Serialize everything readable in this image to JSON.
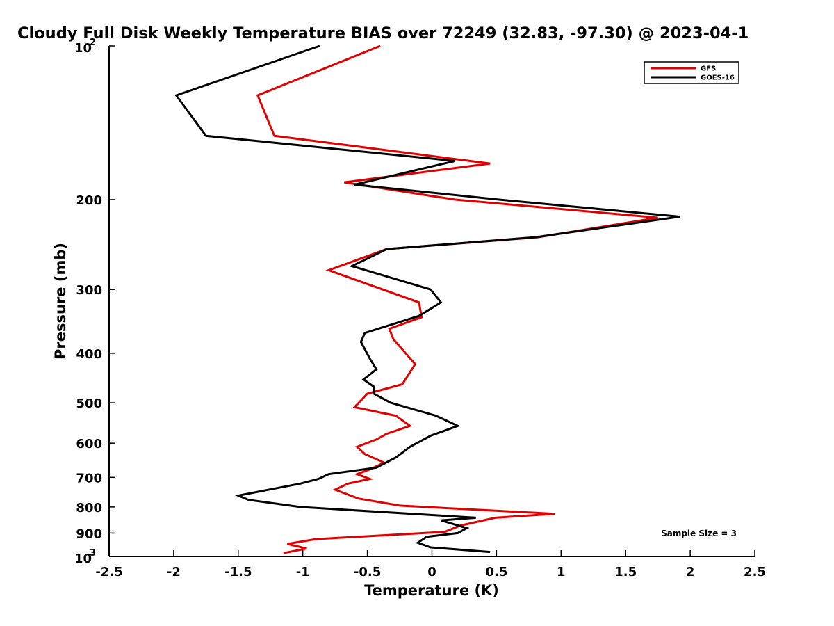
{
  "chart_data": {
    "type": "line",
    "title": "Cloudy Full Disk Weekly Temperature BIAS over 72249 (32.83, -97.30) @ 2023-04-1",
    "xlabel": "Temperature (K)",
    "ylabel": "Pressure (mb)",
    "xlim": [
      -2.5,
      2.5
    ],
    "ylim": [
      100,
      1000
    ],
    "y_scale": "log",
    "y_reversed": true,
    "x_ticks": [
      "-2.5",
      "-2",
      "-1.5",
      "-1",
      "-0.5",
      "0",
      "0.5",
      "1",
      "1.5",
      "2",
      "2.5"
    ],
    "y_ticks": [
      {
        "value": 100,
        "base": "10",
        "exp": "2"
      },
      {
        "value": 200,
        "label": "200"
      },
      {
        "value": 300,
        "label": "300"
      },
      {
        "value": 400,
        "label": "400"
      },
      {
        "value": 500,
        "label": "500"
      },
      {
        "value": 600,
        "label": "600"
      },
      {
        "value": 700,
        "label": "700"
      },
      {
        "value": 800,
        "label": "800"
      },
      {
        "value": 900,
        "label": "900"
      },
      {
        "value": 1000,
        "base": "10",
        "exp": "3"
      }
    ],
    "grid": false,
    "legend_position": "top-right",
    "annotation": "Sample Size = 3",
    "series": [
      {
        "name": "GFS",
        "color": "#e00000",
        "points": [
          [
            -0.4,
            100
          ],
          [
            -1.35,
            125
          ],
          [
            -1.22,
            150
          ],
          [
            0.45,
            170
          ],
          [
            -0.68,
            185
          ],
          [
            0.18,
            200
          ],
          [
            1.75,
            217
          ],
          [
            0.82,
            237
          ],
          [
            -0.35,
            250
          ],
          [
            -0.8,
            275
          ],
          [
            -0.1,
            318
          ],
          [
            -0.08,
            340
          ],
          [
            -0.33,
            358
          ],
          [
            -0.3,
            375
          ],
          [
            -0.13,
            420
          ],
          [
            -0.23,
            460
          ],
          [
            -0.5,
            480
          ],
          [
            -0.6,
            510
          ],
          [
            -0.28,
            530
          ],
          [
            -0.17,
            555
          ],
          [
            -0.35,
            575
          ],
          [
            -0.43,
            590
          ],
          [
            -0.58,
            610
          ],
          [
            -0.52,
            630
          ],
          [
            -0.37,
            655
          ],
          [
            -0.48,
            675
          ],
          [
            -0.58,
            690
          ],
          [
            -0.48,
            705
          ],
          [
            -0.65,
            720
          ],
          [
            -0.75,
            740
          ],
          [
            -0.57,
            770
          ],
          [
            -0.25,
            795
          ],
          [
            0.95,
            825
          ],
          [
            0.49,
            840
          ],
          [
            0.22,
            870
          ],
          [
            0.1,
            895
          ],
          [
            -0.9,
            925
          ],
          [
            -1.12,
            945
          ],
          [
            -0.97,
            965
          ],
          [
            -1.15,
            985
          ]
        ]
      },
      {
        "name": "GOES-16",
        "color": "#000000",
        "points": [
          [
            -0.87,
            100
          ],
          [
            -1.98,
            125
          ],
          [
            -1.75,
            150
          ],
          [
            0.18,
            168
          ],
          [
            -0.6,
            187
          ],
          [
            0.52,
            200
          ],
          [
            1.92,
            216
          ],
          [
            0.8,
            237
          ],
          [
            -0.35,
            250
          ],
          [
            -0.62,
            270
          ],
          [
            -0.01,
            300
          ],
          [
            0.07,
            318
          ],
          [
            -0.1,
            338
          ],
          [
            -0.52,
            365
          ],
          [
            -0.55,
            380
          ],
          [
            -0.48,
            410
          ],
          [
            -0.43,
            430
          ],
          [
            -0.53,
            450
          ],
          [
            -0.45,
            465
          ],
          [
            -0.45,
            480
          ],
          [
            -0.32,
            500
          ],
          [
            0.03,
            530
          ],
          [
            0.2,
            555
          ],
          [
            -0.01,
            580
          ],
          [
            -0.17,
            610
          ],
          [
            -0.28,
            640
          ],
          [
            -0.43,
            670
          ],
          [
            -0.8,
            690
          ],
          [
            -0.88,
            705
          ],
          [
            -1.02,
            720
          ],
          [
            -1.5,
            760
          ],
          [
            -1.42,
            775
          ],
          [
            -1.02,
            800
          ],
          [
            0.34,
            840
          ],
          [
            0.07,
            850
          ],
          [
            0.27,
            880
          ],
          [
            0.2,
            900
          ],
          [
            -0.04,
            915
          ],
          [
            -0.11,
            940
          ],
          [
            -0.01,
            960
          ],
          [
            0.45,
            980
          ]
        ]
      }
    ]
  }
}
